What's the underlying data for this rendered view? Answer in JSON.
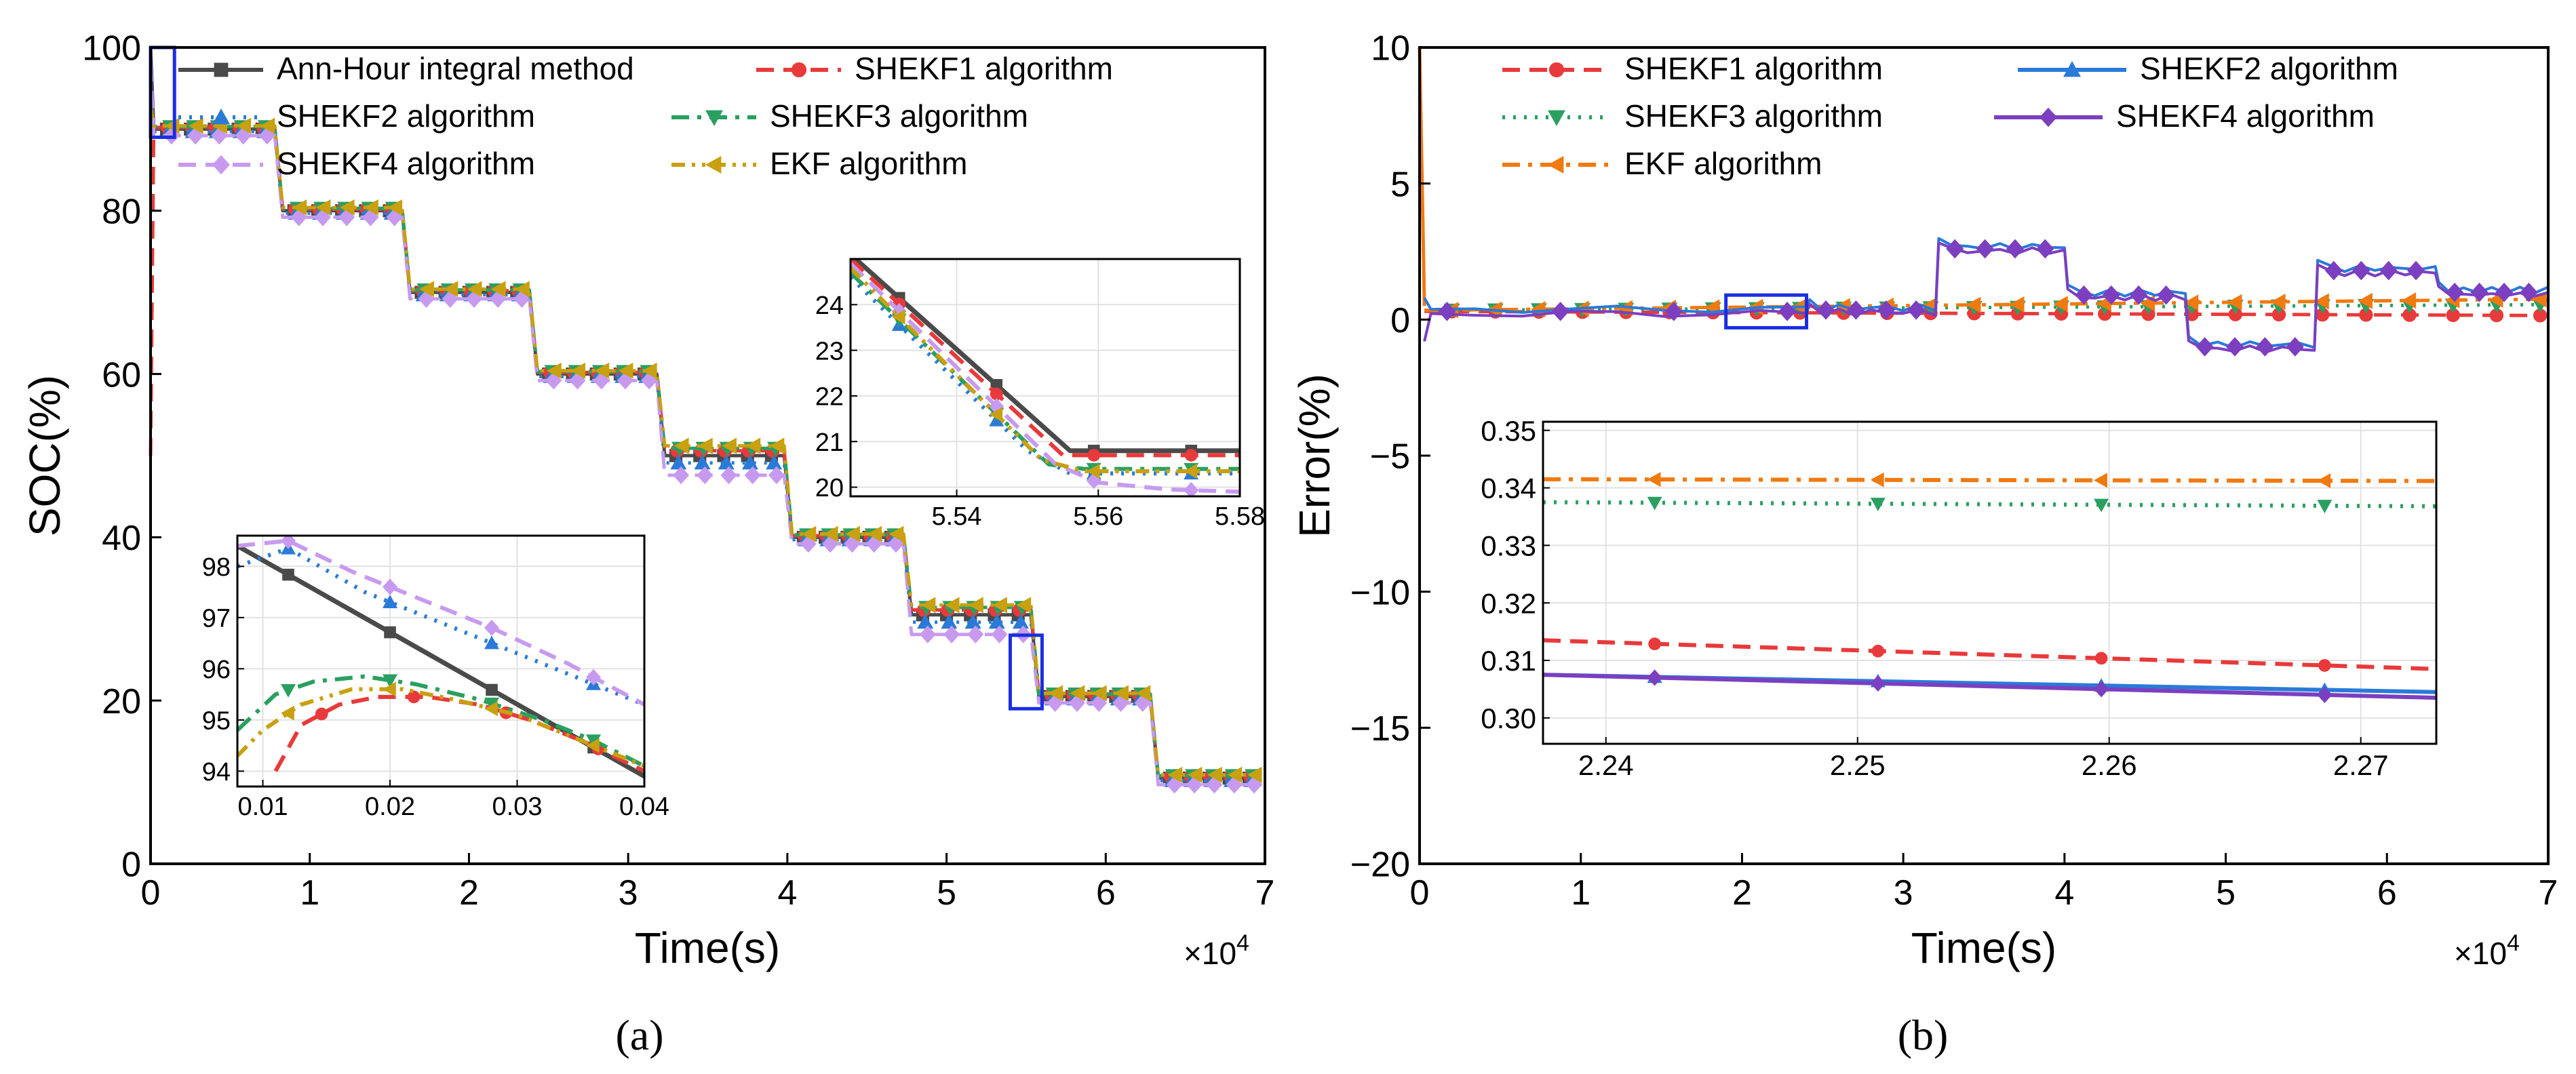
{
  "chart_data": [
    {
      "panel": "(a)",
      "type": "line",
      "xlabel": "Time(s)",
      "ylabel": "SOC(%)",
      "x_multiplier": "×10",
      "x_multiplier_exp": "4",
      "xlim": [
        0,
        7
      ],
      "ylim": [
        0,
        100
      ],
      "xticks": [
        "0",
        "1",
        "2",
        "3",
        "4",
        "5",
        "6",
        "7"
      ],
      "yticks": [
        "0",
        "20",
        "40",
        "60",
        "80",
        "100"
      ],
      "x_units": "10^4 s",
      "steps": [
        {
          "start": 0.0,
          "end": 0.8,
          "soc": 90
        },
        {
          "start": 0.8,
          "end": 1.6,
          "soc": 80
        },
        {
          "start": 1.6,
          "end": 2.4,
          "soc": 70
        },
        {
          "start": 2.4,
          "end": 3.2,
          "soc": 60
        },
        {
          "start": 3.2,
          "end": 4.0,
          "soc": 50
        },
        {
          "start": 4.0,
          "end": 4.75,
          "soc": 40
        },
        {
          "start": 4.75,
          "end": 5.55,
          "soc": 30.5
        },
        {
          "start": 5.55,
          "end": 6.3,
          "soc": 20.5
        },
        {
          "start": 6.3,
          "end": 7.0,
          "soc": 10.5
        }
      ],
      "series": [
        {
          "name": "Ann-Hour integral method",
          "color": "#4a4a4a",
          "marker": "square",
          "dash": "solid",
          "offset": 0.0,
          "initial": 100
        },
        {
          "name": "SHEKF1 algorithm",
          "color": "#e83a3a",
          "marker": "circle",
          "dash": "dash",
          "offset": 0.2,
          "initial": 50
        },
        {
          "name": "SHEKF2  algorithm",
          "color": "#2a7ad8",
          "marker": "triangle-up",
          "dash": "dot",
          "offset": -0.3,
          "initial": 95
        },
        {
          "name": "SHEKF3  algorithm",
          "color": "#2aa060",
          "marker": "triangle-down",
          "dash": "dashdot",
          "offset": 0.3,
          "initial": 92
        },
        {
          "name": "SHEKF4  algorithm",
          "color": "#c79af0",
          "marker": "diamond",
          "dash": "dash",
          "offset": -0.8,
          "initial": 98
        },
        {
          "name": "EKF  algorithm",
          "color": "#c8a010",
          "marker": "triangle-left",
          "dash": "dashdotdot",
          "offset": 0.4,
          "initial": 93
        }
      ],
      "zoom_regions": [
        {
          "x": [
            0.0,
            0.15
          ],
          "y": [
            89,
            100
          ]
        },
        {
          "x": [
            5.4,
            5.6
          ],
          "y": [
            19,
            28
          ]
        }
      ],
      "insets": [
        {
          "name": "start-transient",
          "xlim": [
            0.008,
            0.04
          ],
          "ylim": [
            93.7,
            98.6
          ],
          "xticks": [
            "0.01",
            "0.02",
            "0.03",
            "0.04"
          ],
          "yticks": [
            "94",
            "95",
            "96",
            "97",
            "98"
          ],
          "series": [
            {
              "name": "Ann-Hour integral method",
              "x": [
                0.008,
                0.04
              ],
              "y": [
                98.4,
                93.9
              ]
            },
            {
              "name": "SHEKF1 algorithm",
              "x": [
                0.011,
                0.013,
                0.016,
                0.019,
                0.023,
                0.027,
                0.031,
                0.035,
                0.04
              ],
              "y": [
                94.0,
                94.9,
                95.3,
                95.45,
                95.45,
                95.3,
                95.0,
                94.6,
                94.0
              ]
            },
            {
              "name": "SHEKF2  algorithm",
              "x": [
                0.008,
                0.012,
                0.018,
                0.025,
                0.032,
                0.04
              ],
              "y": [
                98.0,
                98.35,
                97.5,
                96.8,
                96.1,
                95.3
              ]
            },
            {
              "name": "SHEKF3  algorithm",
              "x": [
                0.008,
                0.011,
                0.014,
                0.018,
                0.022,
                0.027,
                0.032,
                0.036,
                0.04
              ],
              "y": [
                94.8,
                95.5,
                95.75,
                95.85,
                95.7,
                95.4,
                95.0,
                94.6,
                94.1
              ]
            },
            {
              "name": "SHEKF4  algorithm",
              "x": [
                0.008,
                0.012,
                0.017,
                0.022,
                0.028,
                0.034,
                0.04
              ],
              "y": [
                98.4,
                98.5,
                97.9,
                97.4,
                96.8,
                96.1,
                95.3
              ]
            },
            {
              "name": "EKF  algorithm",
              "x": [
                0.008,
                0.01,
                0.013,
                0.017,
                0.021,
                0.025,
                0.03,
                0.035,
                0.04
              ],
              "y": [
                94.3,
                94.8,
                95.3,
                95.6,
                95.6,
                95.4,
                95.1,
                94.6,
                94.1
              ]
            }
          ]
        },
        {
          "name": "step-transition",
          "xlim": [
            5.525,
            5.58
          ],
          "ylim": [
            19.8,
            25.0
          ],
          "xticks": [
            "5.54",
            "5.56",
            "5.58"
          ],
          "yticks": [
            "20",
            "21",
            "22",
            "23",
            "24"
          ],
          "series": [
            {
              "name": "Ann-Hour integral method",
              "x": [
                5.525,
                5.556,
                5.58
              ],
              "y": [
                25.1,
                20.8,
                20.8
              ]
            },
            {
              "name": "SHEKF1 algorithm",
              "x": [
                5.525,
                5.555,
                5.58
              ],
              "y": [
                25.0,
                20.7,
                20.7
              ]
            },
            {
              "name": "SHEKF2  algorithm",
              "x": [
                5.525,
                5.55,
                5.556,
                5.58
              ],
              "y": [
                24.6,
                20.8,
                20.3,
                20.3
              ]
            },
            {
              "name": "SHEKF3  algorithm",
              "x": [
                5.525,
                5.553,
                5.558,
                5.58
              ],
              "y": [
                24.7,
                20.5,
                20.4,
                20.4
              ]
            },
            {
              "name": "SHEKF4  algorithm",
              "x": [
                5.525,
                5.554,
                5.56,
                5.57,
                5.58
              ],
              "y": [
                24.9,
                20.5,
                20.1,
                19.95,
                19.9
              ]
            },
            {
              "name": "EKF  algorithm",
              "x": [
                5.525,
                5.552,
                5.558,
                5.58
              ],
              "y": [
                24.8,
                20.6,
                20.35,
                20.35
              ]
            }
          ]
        }
      ],
      "caption": "(a)"
    },
    {
      "panel": "(b)",
      "type": "line",
      "xlabel": "Time(s)",
      "ylabel": "Error(%)",
      "x_multiplier": "×10",
      "x_multiplier_exp": "4",
      "xlim": [
        0,
        7
      ],
      "ylim": [
        -20,
        10
      ],
      "xticks": [
        "0",
        "1",
        "2",
        "3",
        "4",
        "5",
        "6",
        "7"
      ],
      "yticks": [
        "−20",
        "−15",
        "−10",
        "−5",
        "0",
        "5",
        "10"
      ],
      "x_units": "10^4 s",
      "series": [
        {
          "name": "SHEKF1 algorithm",
          "color": "#e83a3a",
          "marker": "circle",
          "dash": "dash",
          "mean": 0.31
        },
        {
          "name": "SHEKF2  algorithm",
          "color": "#2a7ad8",
          "marker": "triangle-up",
          "dash": "solid",
          "mean": 0.305
        },
        {
          "name": "SHEKF3  algorithm",
          "color": "#2aa060",
          "marker": "triangle-down",
          "dash": "dot",
          "mean": 0.337
        },
        {
          "name": "SHEKF4  algorithm",
          "color": "#7b3fc0",
          "marker": "diamond",
          "dash": "solid",
          "mean": 0.305
        },
        {
          "name": "EKF  algorithm",
          "color": "#f07a10",
          "marker": "triangle-left",
          "dash": "dashdot",
          "mean": 0.341
        }
      ],
      "segments_shekf2_shekf4": [
        {
          "x": [
            0.05,
            2.4
          ],
          "y": 0.3
        },
        {
          "x": [
            2.4,
            3.2
          ],
          "y": 0.35
        },
        {
          "x": [
            3.2,
            4.0
          ],
          "y": 2.6
        },
        {
          "x": [
            4.0,
            4.75
          ],
          "y": 0.9
        },
        {
          "x": [
            4.75,
            5.55
          ],
          "y": -1.0
        },
        {
          "x": [
            5.55,
            6.3
          ],
          "y": 1.8
        },
        {
          "x": [
            6.3,
            7.0
          ],
          "y": 1.0
        }
      ],
      "initial_spike": {
        "x": [
          0.0,
          0.03
        ],
        "y": [
          10,
          0.5
        ]
      },
      "zoom_regions": [
        {
          "x": [
            1.9,
            2.4
          ],
          "y": [
            -0.3,
            0.9
          ]
        }
      ],
      "insets": [
        {
          "name": "error-zoom",
          "xlim": [
            2.2375,
            2.273
          ],
          "ylim": [
            0.2955,
            0.3515
          ],
          "xticks": [
            "2.24",
            "2.25",
            "2.26",
            "2.27"
          ],
          "yticks": [
            "0.30",
            "0.31",
            "0.32",
            "0.33",
            "0.34",
            "0.35"
          ],
          "series": [
            {
              "name": "EKF  algorithm",
              "x": [
                2.2375,
                2.273
              ],
              "y": [
                0.3415,
                0.3412
              ]
            },
            {
              "name": "SHEKF3  algorithm",
              "x": [
                2.2375,
                2.273
              ],
              "y": [
                0.3375,
                0.3368
              ]
            },
            {
              "name": "SHEKF1 algorithm",
              "x": [
                2.2375,
                2.273
              ],
              "y": [
                0.3135,
                0.3085
              ]
            },
            {
              "name": "SHEKF2  algorithm",
              "x": [
                2.2375,
                2.273
              ],
              "y": [
                0.3075,
                0.3045
              ]
            },
            {
              "name": "SHEKF4  algorithm",
              "x": [
                2.2375,
                2.273
              ],
              "y": [
                0.3075,
                0.3035
              ]
            }
          ]
        }
      ],
      "caption": "(b)"
    }
  ]
}
